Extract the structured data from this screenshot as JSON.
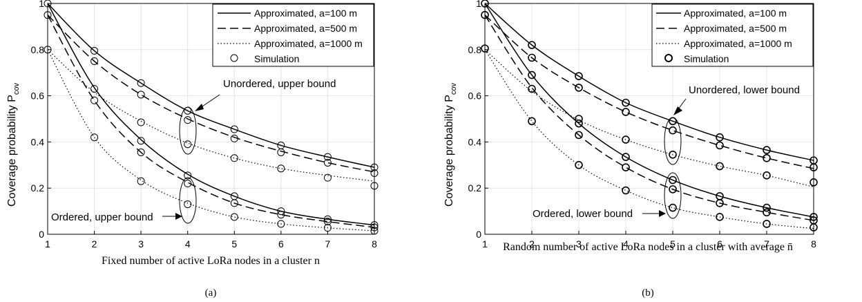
{
  "chart_data": [
    {
      "type": "line",
      "panel": "(a)",
      "xlabel": "Fixed number of active LoRa nodes in a cluster n",
      "ylabel": "Coverage probability P",
      "ylabel_sub": "cov",
      "xlim": [
        1,
        8
      ],
      "ylim": [
        0,
        1
      ],
      "x_ticks": [
        "1",
        "2",
        "3",
        "4",
        "5",
        "6",
        "7",
        "8"
      ],
      "y_ticks": [
        "0",
        "0.2",
        "0.4",
        "0.6",
        "0.8",
        "1"
      ],
      "grid": true,
      "legend_position": "top-right",
      "legend": [
        "Approximated, a=100 m",
        "Approximated, a=500 m",
        "Approximated, a=1000 m",
        "Simulation"
      ],
      "x": [
        1,
        2,
        3,
        4,
        5,
        6,
        7,
        8
      ],
      "series": [
        {
          "name": "Approximated, a=100 m",
          "group": "Unordered",
          "style": "solid",
          "values": [
            1.0,
            0.795,
            0.655,
            0.535,
            0.455,
            0.385,
            0.335,
            0.29
          ]
        },
        {
          "name": "Approximated, a=500 m",
          "group": "Unordered",
          "style": "dashed",
          "values": [
            0.95,
            0.75,
            0.605,
            0.5,
            0.42,
            0.36,
            0.31,
            0.27
          ]
        },
        {
          "name": "Approximated, a=1000 m",
          "group": "Unordered",
          "style": "dotted",
          "values": [
            0.8,
            0.615,
            0.49,
            0.395,
            0.33,
            0.285,
            0.255,
            0.23
          ]
        },
        {
          "name": "Approximated, a=100 m",
          "group": "Ordered",
          "style": "solid",
          "values": [
            1.0,
            0.635,
            0.41,
            0.26,
            0.165,
            0.1,
            0.065,
            0.04
          ]
        },
        {
          "name": "Approximated, a=500 m",
          "group": "Ordered",
          "style": "dashed",
          "values": [
            0.95,
            0.58,
            0.355,
            0.225,
            0.135,
            0.085,
            0.055,
            0.03
          ]
        },
        {
          "name": "Approximated, a=1000 m",
          "group": "Ordered",
          "style": "dotted",
          "values": [
            0.8,
            0.42,
            0.235,
            0.135,
            0.075,
            0.045,
            0.028,
            0.015
          ]
        }
      ],
      "simulation": [
        [
          1,
          1.0
        ],
        [
          1,
          0.95
        ],
        [
          1,
          0.8
        ],
        [
          2,
          0.795
        ],
        [
          2,
          0.75
        ],
        [
          2,
          0.63
        ],
        [
          2,
          0.58
        ],
        [
          2,
          0.42
        ],
        [
          3,
          0.655
        ],
        [
          3,
          0.605
        ],
        [
          3,
          0.485
        ],
        [
          3,
          0.405
        ],
        [
          3,
          0.355
        ],
        [
          3,
          0.23
        ],
        [
          4,
          0.535
        ],
        [
          4,
          0.495
        ],
        [
          4,
          0.39
        ],
        [
          4,
          0.255
        ],
        [
          4,
          0.22
        ],
        [
          4,
          0.13
        ],
        [
          5,
          0.455
        ],
        [
          5,
          0.415
        ],
        [
          5,
          0.33
        ],
        [
          5,
          0.165
        ],
        [
          5,
          0.135
        ],
        [
          5,
          0.075
        ],
        [
          6,
          0.385
        ],
        [
          6,
          0.355
        ],
        [
          6,
          0.285
        ],
        [
          6,
          0.1
        ],
        [
          6,
          0.085
        ],
        [
          6,
          0.045
        ],
        [
          7,
          0.335
        ],
        [
          7,
          0.31
        ],
        [
          7,
          0.245
        ],
        [
          7,
          0.065
        ],
        [
          7,
          0.055
        ],
        [
          7,
          0.028
        ],
        [
          8,
          0.29
        ],
        [
          8,
          0.265
        ],
        [
          8,
          0.21
        ],
        [
          8,
          0.04
        ],
        [
          8,
          0.03
        ],
        [
          8,
          0.015
        ]
      ],
      "annotations": [
        {
          "text": "Unordered, upper bound",
          "x": 4
        },
        {
          "text": "Ordered, upper bound",
          "x": 4
        }
      ],
      "caption": "(a)"
    },
    {
      "type": "line",
      "panel": "(b)",
      "xlabel": "Random number of active LoRa nodes in a cluster with average n̄",
      "ylabel": "Coverage probability P",
      "ylabel_sub": "cov",
      "xlim": [
        1,
        8
      ],
      "ylim": [
        0,
        1
      ],
      "x_ticks": [
        "1",
        "2",
        "3",
        "4",
        "5",
        "6",
        "7",
        "8"
      ],
      "y_ticks": [
        "0",
        "0.2",
        "0.4",
        "0.6",
        "0.8",
        "1"
      ],
      "grid": true,
      "legend_position": "top-right",
      "legend": [
        "Approximated, a=100 m",
        "Approximated, a=500 m",
        "Approximated, a=1000 m",
        "Simulation"
      ],
      "x": [
        1,
        2,
        3,
        4,
        5,
        6,
        7,
        8
      ],
      "series": [
        {
          "name": "Approximated, a=100 m",
          "group": "Unordered",
          "style": "solid",
          "values": [
            1.0,
            0.82,
            0.685,
            0.57,
            0.49,
            0.42,
            0.365,
            0.32
          ]
        },
        {
          "name": "Approximated, a=500 m",
          "group": "Unordered",
          "style": "dashed",
          "values": [
            0.95,
            0.765,
            0.635,
            0.53,
            0.45,
            0.385,
            0.33,
            0.285
          ]
        },
        {
          "name": "Approximated, a=1000 m",
          "group": "Unordered",
          "style": "dotted",
          "values": [
            0.8,
            0.62,
            0.495,
            0.41,
            0.345,
            0.295,
            0.255,
            0.205
          ]
        },
        {
          "name": "Approximated, a=100 m",
          "group": "Ordered",
          "style": "solid",
          "values": [
            1.0,
            0.69,
            0.48,
            0.335,
            0.235,
            0.165,
            0.115,
            0.075
          ]
        },
        {
          "name": "Approximated, a=500 m",
          "group": "Ordered",
          "style": "dashed",
          "values": [
            0.95,
            0.635,
            0.43,
            0.29,
            0.195,
            0.135,
            0.095,
            0.06
          ]
        },
        {
          "name": "Approximated, a=1000 m",
          "group": "Ordered",
          "style": "dotted",
          "values": [
            0.8,
            0.49,
            0.3,
            0.19,
            0.115,
            0.075,
            0.045,
            0.025
          ]
        }
      ],
      "simulation": [
        [
          1,
          1.0
        ],
        [
          1,
          0.95
        ],
        [
          1,
          0.805
        ],
        [
          2,
          0.82
        ],
        [
          2,
          0.765
        ],
        [
          2,
          0.69
        ],
        [
          2,
          0.63
        ],
        [
          2,
          0.49
        ],
        [
          3,
          0.685
        ],
        [
          3,
          0.635
        ],
        [
          3,
          0.5
        ],
        [
          3,
          0.48
        ],
        [
          3,
          0.43
        ],
        [
          3,
          0.3
        ],
        [
          4,
          0.57
        ],
        [
          4,
          0.53
        ],
        [
          4,
          0.41
        ],
        [
          4,
          0.335
        ],
        [
          4,
          0.29
        ],
        [
          4,
          0.19
        ],
        [
          5,
          0.49
        ],
        [
          5,
          0.45
        ],
        [
          5,
          0.345
        ],
        [
          5,
          0.235
        ],
        [
          5,
          0.195
        ],
        [
          5,
          0.115
        ],
        [
          6,
          0.42
        ],
        [
          6,
          0.385
        ],
        [
          6,
          0.295
        ],
        [
          6,
          0.165
        ],
        [
          6,
          0.135
        ],
        [
          6,
          0.075
        ],
        [
          7,
          0.365
        ],
        [
          7,
          0.33
        ],
        [
          7,
          0.255
        ],
        [
          7,
          0.115
        ],
        [
          7,
          0.095
        ],
        [
          7,
          0.045
        ],
        [
          8,
          0.32
        ],
        [
          8,
          0.29
        ],
        [
          8,
          0.225
        ],
        [
          8,
          0.075
        ],
        [
          8,
          0.06
        ],
        [
          8,
          0.03
        ]
      ],
      "annotations": [
        {
          "text": "Unordered, lower bound",
          "x": 5
        },
        {
          "text": "Ordered, lower bound",
          "x": 5
        }
      ],
      "caption": "(b)"
    }
  ]
}
